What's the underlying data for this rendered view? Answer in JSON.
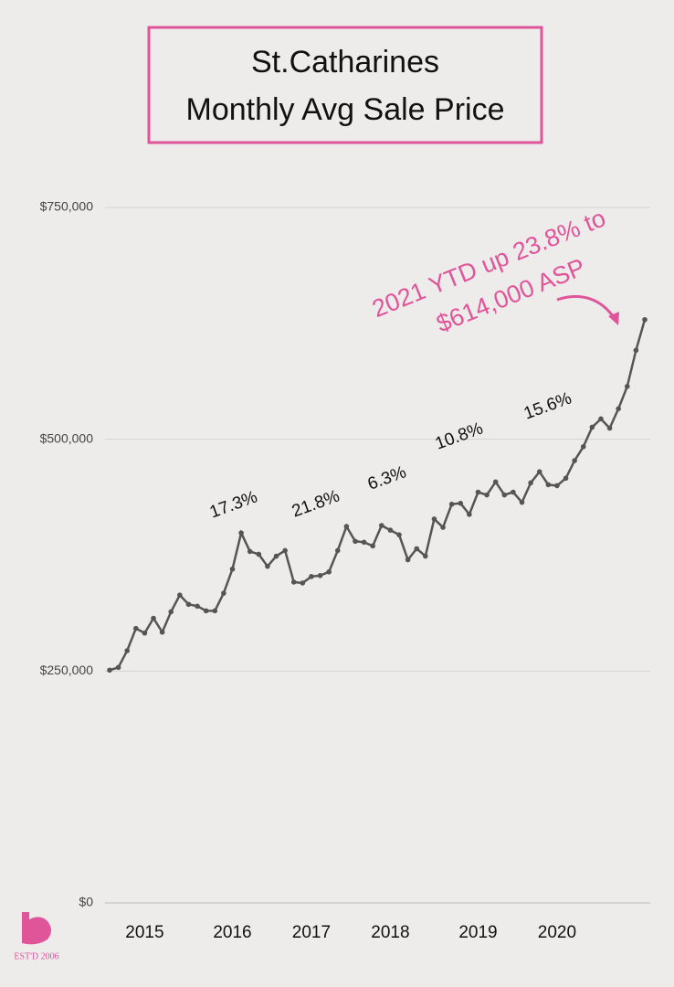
{
  "chart_data": {
    "type": "line",
    "title": [
      "St.Catharines",
      "Monthly Avg Sale Price"
    ],
    "categories": [
      null,
      null,
      null,
      null,
      "2015",
      null,
      null,
      null,
      null,
      null,
      null,
      null,
      null,
      null,
      "2016",
      null,
      null,
      null,
      null,
      null,
      null,
      null,
      null,
      "2017",
      null,
      null,
      null,
      null,
      null,
      null,
      null,
      null,
      "2018",
      null,
      null,
      null,
      null,
      null,
      null,
      null,
      null,
      null,
      "2019",
      null,
      null,
      null,
      null,
      null,
      null,
      null,
      null,
      "2020",
      null,
      null,
      null,
      null,
      null,
      null,
      null,
      null,
      null,
      null
    ],
    "series": [
      {
        "name": "Monthly Avg Sale Price",
        "color": "#555555",
        "values": [
          251000,
          254000,
          272000,
          296000,
          291000,
          307000,
          292000,
          314000,
          332000,
          322000,
          320000,
          315000,
          315000,
          334000,
          360000,
          399000,
          379000,
          376000,
          363000,
          374000,
          380000,
          346000,
          345000,
          352000,
          353000,
          357000,
          380000,
          406000,
          390000,
          389000,
          385000,
          407000,
          402000,
          397000,
          370000,
          382000,
          374000,
          414000,
          405000,
          430000,
          431000,
          419000,
          443000,
          440000,
          454000,
          440000,
          443000,
          432000,
          453000,
          465000,
          451000,
          450000,
          458000,
          477000,
          492000,
          513000,
          522000,
          512000,
          533000,
          557000,
          596000,
          629000
        ]
      }
    ],
    "ylim": [
      0,
      750000
    ],
    "yticks": [
      {
        "value": 0,
        "label": "$0"
      },
      {
        "value": 250000,
        "label": "$250,000"
      },
      {
        "value": 500000,
        "label": "$500,000"
      },
      {
        "value": 750000,
        "label": "$750,000"
      }
    ],
    "grid": true,
    "annotations": [
      "17.3%",
      "21.8%",
      "6.3%",
      "10.8%",
      "15.6%"
    ],
    "callout": [
      "2021 YTD up 23.8% to",
      "$614,000 ASP"
    ],
    "callout_color": "#e0559a",
    "logo_text": "EST'D 2006"
  }
}
